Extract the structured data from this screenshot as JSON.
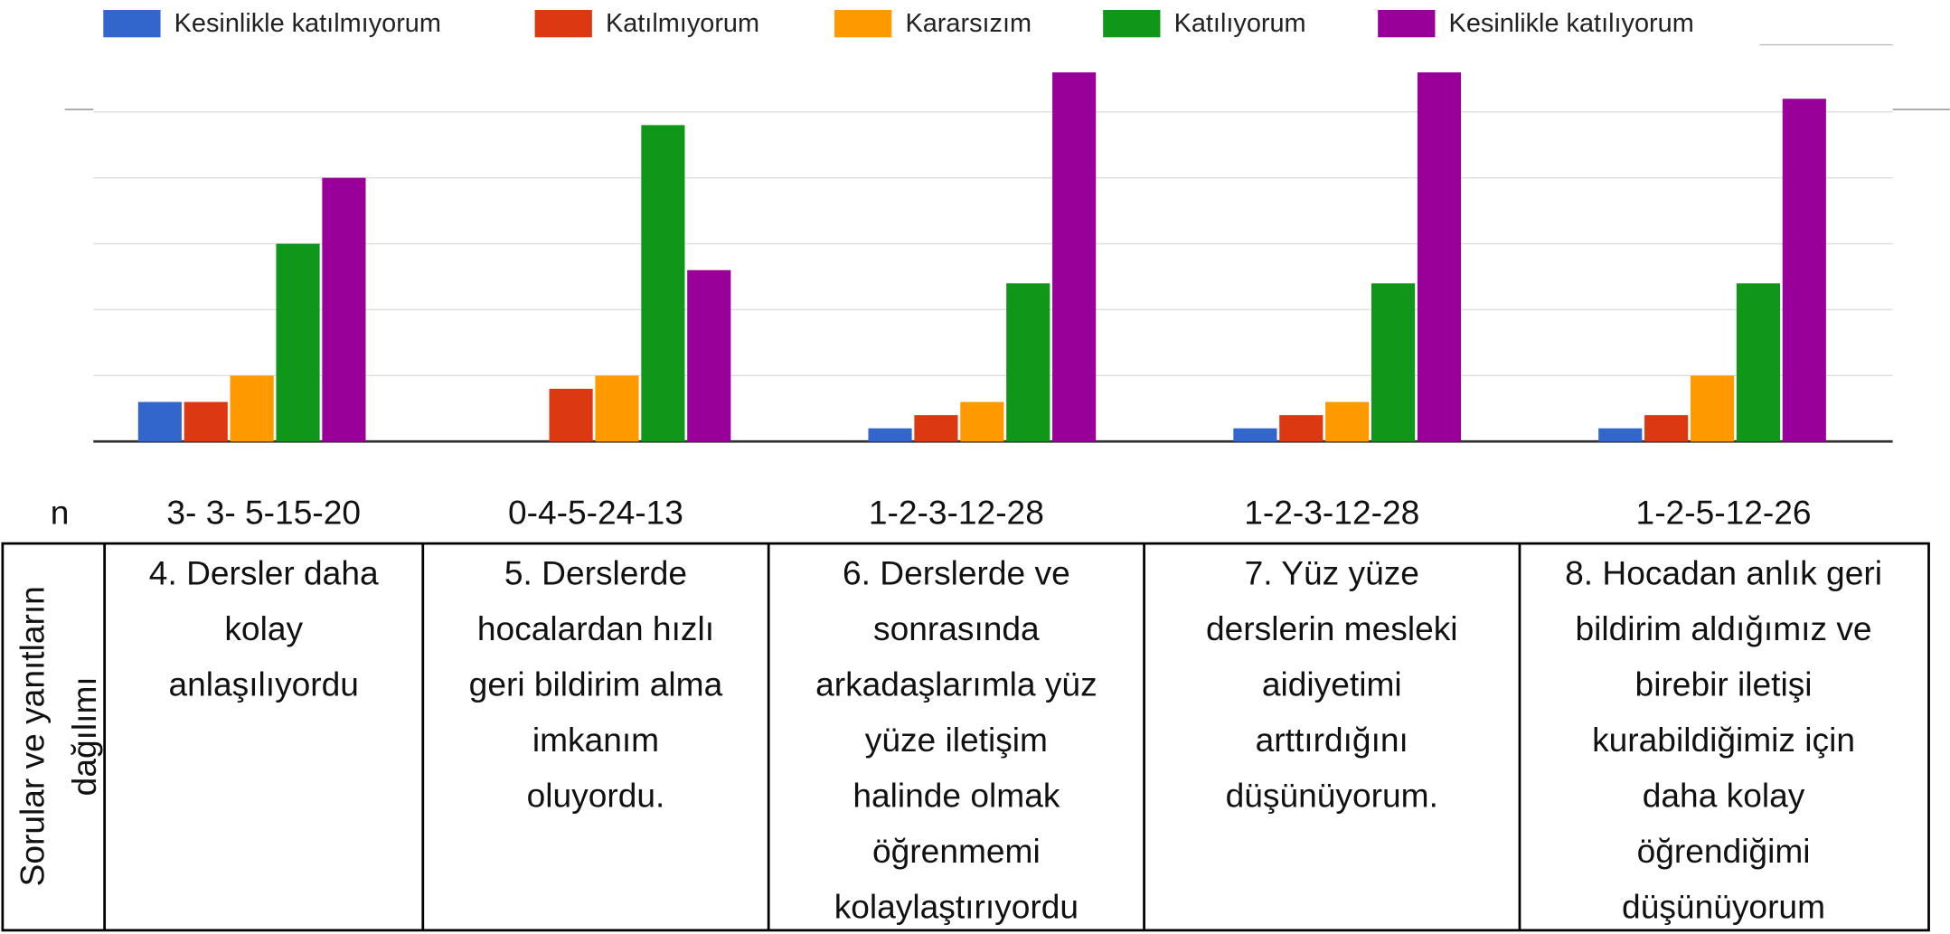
{
  "chart_data": {
    "type": "bar",
    "legend": "top",
    "grid": true,
    "ylim": [
      0,
      30
    ],
    "yticks": [
      0,
      5,
      10,
      15,
      20,
      25
    ],
    "x_label": "n",
    "categories": [
      "3- 3- 5-15-20",
      "0-4-5-24-13",
      "1-2-3-12-28",
      "1-2-3-12-28",
      "1-2-5-12-26"
    ],
    "series": [
      {
        "name": "Kesinlikle katılmıyorum",
        "color": "#3366cc",
        "values": [
          3,
          0,
          1,
          1,
          1
        ]
      },
      {
        "name": "Katılmıyorum",
        "color": "#dc3912",
        "values": [
          3,
          4,
          2,
          2,
          2
        ]
      },
      {
        "name": "Kararsızım",
        "color": "#ff9900",
        "values": [
          5,
          5,
          3,
          3,
          5
        ]
      },
      {
        "name": "Katılıyorum",
        "color": "#109618",
        "values": [
          15,
          24,
          12,
          12,
          12
        ]
      },
      {
        "name": "Kesinlikle katılıyorum",
        "color": "#990099",
        "values": [
          20,
          13,
          28,
          28,
          26
        ]
      }
    ]
  },
  "table": {
    "header": [
      "Sorular ve yanıtların",
      "dağılımı"
    ],
    "cells": [
      [
        "4. Dersler daha",
        "kolay",
        "anlaşılıyordu"
      ],
      [
        "5. Derslerde",
        "hocalardan hızlı",
        "geri bildirim alma",
        "imkanım",
        "oluyordu."
      ],
      [
        "6. Derslerde ve",
        "sonrasında",
        "arkadaşlarımla yüz",
        "yüze iletişim",
        "halinde olmak",
        "öğrenmemi",
        "kolaylaştırıyordu"
      ],
      [
        "7. Yüz yüze",
        "derslerin mesleki",
        "aidiyetimi",
        "arttırdığını",
        "düşünüyorum."
      ],
      [
        "8. Hocadan anlık geri",
        "bildirim aldığımız ve",
        "birebir iletişi",
        "kurabildiğimiz için",
        "daha kolay",
        "öğrendiğimi",
        "düşünüyorum"
      ]
    ]
  }
}
